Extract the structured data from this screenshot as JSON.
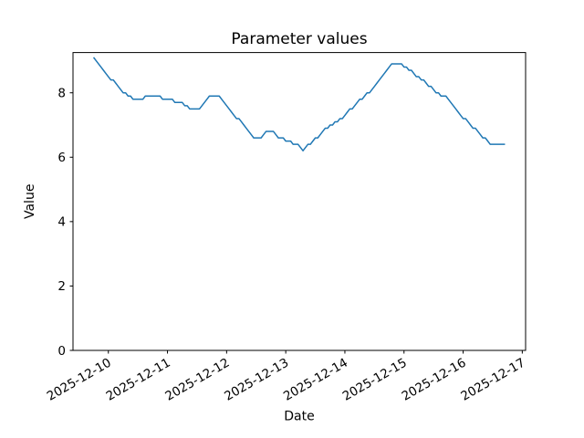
{
  "chart_data": {
    "type": "line",
    "title": "Parameter values",
    "xlabel": "Date",
    "ylabel": "Value",
    "legend": null,
    "grid": false,
    "line_color": "#1f77b4",
    "line_width": 1.5,
    "background_color": "#ffffff",
    "axis_color": "#000000",
    "x_start": "2025-12-09 18:00",
    "x_interval_hours": 1,
    "n_points": 168,
    "xlim_hours": [
      -8.35,
      175.35
    ],
    "ylim": [
      0,
      9.25
    ],
    "x_tick_hours": [
      6,
      30,
      54,
      78,
      102,
      126,
      150,
      174
    ],
    "x_tick_labels": [
      "2025-12-10",
      "2025-12-11",
      "2025-12-12",
      "2025-12-13",
      "2025-12-14",
      "2025-12-15",
      "2025-12-16",
      "2025-12-17"
    ],
    "x_tick_rotation_deg": 30,
    "y_ticks": [
      0,
      2,
      4,
      6,
      8
    ],
    "y_tick_labels": [
      "0",
      "2",
      "4",
      "6",
      "8"
    ],
    "values": [
      9.1,
      9.0,
      8.9,
      8.8,
      8.7,
      8.6,
      8.5,
      8.4,
      8.4,
      8.3,
      8.2,
      8.1,
      8.0,
      8.0,
      7.9,
      7.9,
      7.8,
      7.8,
      7.8,
      7.8,
      7.8,
      7.9,
      7.9,
      7.9,
      7.9,
      7.9,
      7.9,
      7.9,
      7.8,
      7.8,
      7.8,
      7.8,
      7.8,
      7.7,
      7.7,
      7.7,
      7.7,
      7.6,
      7.6,
      7.5,
      7.5,
      7.5,
      7.5,
      7.5,
      7.6,
      7.7,
      7.8,
      7.9,
      7.9,
      7.9,
      7.9,
      7.9,
      7.8,
      7.7,
      7.6,
      7.5,
      7.4,
      7.3,
      7.2,
      7.2,
      7.1,
      7.0,
      6.9,
      6.8,
      6.7,
      6.6,
      6.6,
      6.6,
      6.6,
      6.7,
      6.8,
      6.8,
      6.8,
      6.8,
      6.7,
      6.6,
      6.6,
      6.6,
      6.5,
      6.5,
      6.5,
      6.4,
      6.4,
      6.4,
      6.3,
      6.2,
      6.3,
      6.4,
      6.4,
      6.5,
      6.6,
      6.6,
      6.7,
      6.8,
      6.9,
      6.9,
      7.0,
      7.0,
      7.1,
      7.1,
      7.2,
      7.2,
      7.3,
      7.4,
      7.5,
      7.5,
      7.6,
      7.7,
      7.8,
      7.8,
      7.9,
      8.0,
      8.0,
      8.1,
      8.2,
      8.3,
      8.4,
      8.5,
      8.6,
      8.7,
      8.8,
      8.9,
      8.9,
      8.9,
      8.9,
      8.9,
      8.8,
      8.8,
      8.7,
      8.7,
      8.6,
      8.5,
      8.5,
      8.4,
      8.4,
      8.3,
      8.2,
      8.2,
      8.1,
      8.0,
      8.0,
      7.9,
      7.9,
      7.9,
      7.8,
      7.7,
      7.6,
      7.5,
      7.4,
      7.3,
      7.2,
      7.2,
      7.1,
      7.0,
      6.9,
      6.9,
      6.8,
      6.7,
      6.6,
      6.6,
      6.5,
      6.4,
      6.4,
      6.4,
      6.4,
      6.4,
      6.4,
      6.4
    ]
  }
}
